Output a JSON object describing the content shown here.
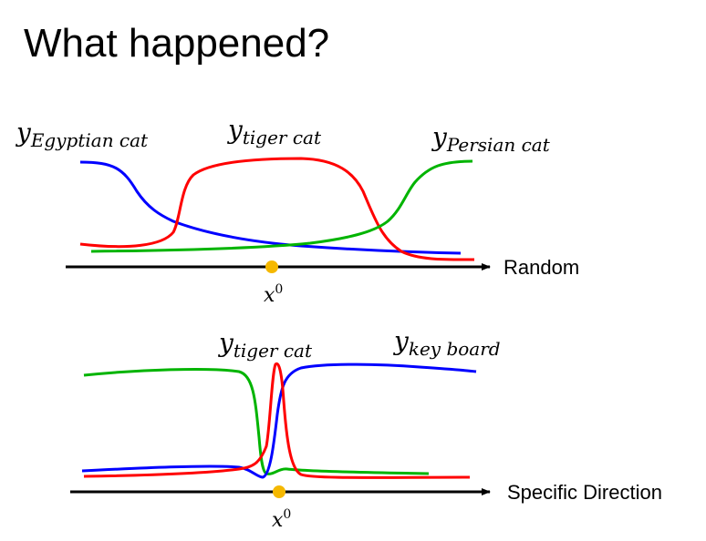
{
  "title": "What happened?",
  "colors": {
    "blue": "#0000ff",
    "red": "#ff0000",
    "green": "#00b400",
    "point": "#f5b800",
    "axis": "#000000"
  },
  "panel_top": {
    "axis_label": "Random",
    "point_label_base": "x",
    "point_label_sup": "0",
    "curves": [
      {
        "base": "y",
        "sub": "Egyptian cat",
        "color": "blue"
      },
      {
        "base": "y",
        "sub": "tiger cat",
        "color": "red"
      },
      {
        "base": "y",
        "sub": "Persian cat",
        "color": "green"
      }
    ]
  },
  "panel_bottom": {
    "axis_label": "Specific Direction",
    "point_label_base": "x",
    "point_label_sup": "0",
    "curves": [
      {
        "base": "y",
        "sub": "tiger cat",
        "color": "red"
      },
      {
        "base": "y",
        "sub": "key board",
        "color": "blue"
      }
    ]
  }
}
